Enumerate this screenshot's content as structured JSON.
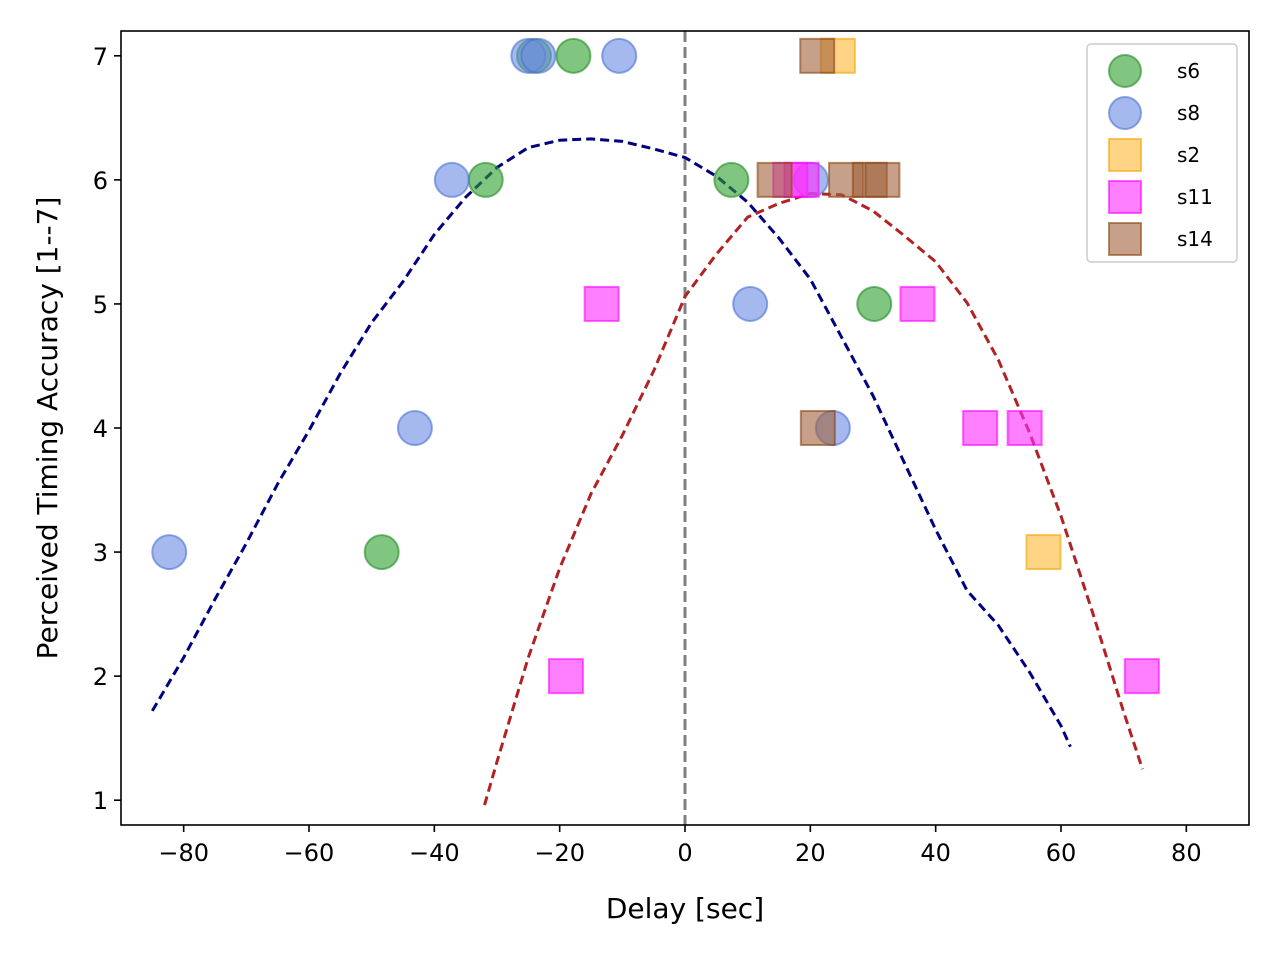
{
  "chart_data": {
    "type": "scatter",
    "title": "",
    "xlabel": "Delay [sec]",
    "ylabel": "Perceived Timing Accuracy [1--7]",
    "xlim": [
      -90,
      90
    ],
    "ylim": [
      0.8,
      7.2
    ],
    "xticks": [
      -80,
      -60,
      -40,
      -20,
      0,
      20,
      40,
      60,
      80
    ],
    "xtick_labels": [
      "−80",
      "−60",
      "−40",
      "−20",
      "0",
      "20",
      "40",
      "60",
      "80"
    ],
    "yticks": [
      1,
      2,
      3,
      4,
      5,
      6,
      7
    ],
    "ytick_labels": [
      "1",
      "2",
      "3",
      "4",
      "5",
      "6",
      "7"
    ],
    "grid": false,
    "legend_position": "top-right",
    "reference_line": {
      "x": 0,
      "style": "dashed",
      "color": "#808080"
    },
    "series": [
      {
        "name": "s6",
        "marker": "circle",
        "color": "#2ca02c",
        "edge": "#228b22",
        "points": [
          [
            -48.4,
            3
          ],
          [
            -31.8,
            6
          ],
          [
            -17.8,
            7
          ],
          [
            -24.1,
            7
          ],
          [
            7.4,
            6
          ],
          [
            30.2,
            5
          ]
        ]
      },
      {
        "name": "s8",
        "marker": "circle",
        "color": "#6a8ae3",
        "edge": "#4a6fd6",
        "points": [
          [
            -82.3,
            3
          ],
          [
            -43.1,
            4
          ],
          [
            -37.2,
            6
          ],
          [
            -25.0,
            7
          ],
          [
            -23.4,
            7
          ],
          [
            -10.5,
            7
          ],
          [
            10.4,
            5
          ],
          [
            20.1,
            6
          ],
          [
            23.6,
            4
          ]
        ]
      },
      {
        "name": "s2",
        "marker": "square",
        "color": "#ffb733",
        "edge": "#f0a500",
        "points": [
          [
            24.4,
            7
          ],
          [
            57.2,
            3
          ]
        ]
      },
      {
        "name": "s11",
        "marker": "square",
        "color": "#ff2cff",
        "edge": "#ff00ff",
        "points": [
          [
            -19.0,
            2
          ],
          [
            -13.3,
            5
          ],
          [
            16.8,
            6
          ],
          [
            18.6,
            6
          ],
          [
            37.1,
            5
          ],
          [
            47.1,
            4
          ],
          [
            54.2,
            4
          ],
          [
            72.9,
            2
          ]
        ]
      },
      {
        "name": "s14",
        "marker": "square",
        "color": "#a0613a",
        "edge": "#8b4513",
        "points": [
          [
            21.1,
            7
          ],
          [
            14.3,
            6
          ],
          [
            25.7,
            6
          ],
          [
            29.5,
            6
          ],
          [
            31.5,
            6
          ],
          [
            21.2,
            4
          ]
        ]
      }
    ],
    "fit_curves": [
      {
        "name": "fit-negative-delay",
        "color": "#000080",
        "style": "dashed",
        "x": [
          -85,
          -80,
          -75,
          -70,
          -65,
          -60,
          -55,
          -50,
          -45,
          -40,
          -35,
          -30,
          -25,
          -20,
          -15,
          -10,
          -5,
          0,
          5,
          10,
          15,
          20,
          25,
          30,
          35,
          40,
          45,
          50,
          55,
          60,
          61.5
        ],
        "y": [
          1.72,
          2.15,
          2.62,
          3.07,
          3.55,
          3.98,
          4.44,
          4.85,
          5.18,
          5.56,
          5.86,
          6.1,
          6.26,
          6.32,
          6.33,
          6.31,
          6.25,
          6.18,
          6.03,
          5.82,
          5.53,
          5.2,
          4.73,
          4.26,
          3.72,
          3.18,
          2.69,
          2.41,
          2.03,
          1.6,
          1.43
        ]
      },
      {
        "name": "fit-positive-delay",
        "color": "#b22222",
        "style": "dashed",
        "x": [
          -32,
          -30,
          -25,
          -20,
          -15,
          -10,
          -5,
          0,
          5,
          10,
          15,
          20,
          25,
          30,
          35,
          40,
          45,
          50,
          55,
          60,
          65,
          70,
          73
        ],
        "y": [
          0.96,
          1.31,
          2.15,
          2.87,
          3.47,
          3.94,
          4.46,
          5.06,
          5.4,
          5.7,
          5.81,
          5.89,
          5.88,
          5.75,
          5.55,
          5.34,
          5.01,
          4.55,
          3.96,
          3.29,
          2.52,
          1.71,
          1.25
        ]
      }
    ]
  }
}
